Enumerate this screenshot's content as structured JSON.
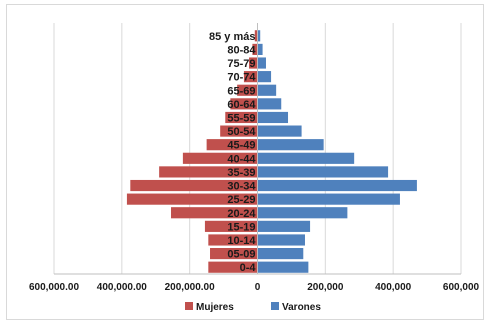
{
  "chart_data": {
    "type": "bar",
    "orientation": "horizontal",
    "subtype": "population-pyramid",
    "categories": [
      "0-4",
      "05-09",
      "10-14",
      "15-19",
      "20-24",
      "25-29",
      "30-34",
      "35-39",
      "40-44",
      "45-49",
      "50-54",
      "55-59",
      "60-64",
      "65-69",
      "70-74",
      "75-79",
      "80-84",
      "85 y más"
    ],
    "series": [
      {
        "name": "Mujeres",
        "color": "#c0504d",
        "values": [
          145000,
          140000,
          145000,
          155000,
          255000,
          385000,
          375000,
          290000,
          220000,
          150000,
          110000,
          95000,
          80000,
          60000,
          40000,
          25000,
          15000,
          8000
        ]
      },
      {
        "name": "Varones",
        "color": "#4f81bd",
        "values": [
          150000,
          135000,
          140000,
          155000,
          265000,
          420000,
          470000,
          385000,
          285000,
          195000,
          130000,
          90000,
          70000,
          55000,
          40000,
          25000,
          15000,
          8000
        ]
      }
    ],
    "xlim": [
      -600000,
      600000
    ],
    "left_ticks": [
      {
        "value": -600000,
        "label": "600,000.00"
      },
      {
        "value": -400000,
        "label": "400,000.00"
      },
      {
        "value": -200000,
        "label": "200,000.00"
      }
    ],
    "right_ticks": [
      {
        "value": 0,
        "label": "0"
      },
      {
        "value": 200000,
        "label": "200,000"
      },
      {
        "value": 400000,
        "label": "400,000"
      },
      {
        "value": 600000,
        "label": "600,000"
      }
    ],
    "grid": true,
    "legend_position": "bottom"
  }
}
